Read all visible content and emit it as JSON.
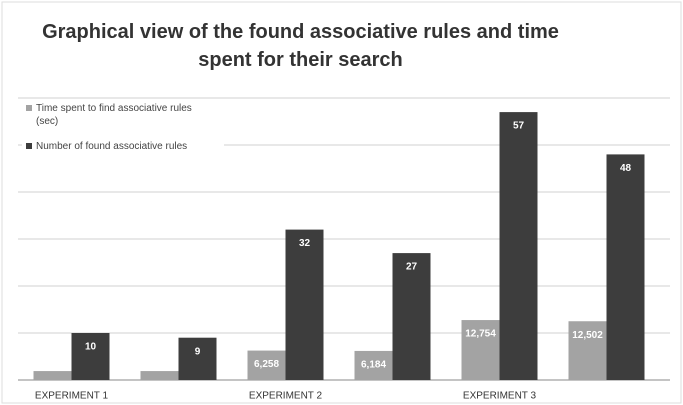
{
  "chart_data": {
    "type": "bar",
    "title": "Graphical view of the found associative rules and time spent for their search",
    "categories": [
      "EXPERIMENT 1",
      null,
      "EXPERIMENT 2",
      null,
      "EXPERIMENT 3",
      null
    ],
    "series": [
      {
        "name": "Time spent to find associative rules (sec)",
        "color": "#a3a3a3",
        "values": [
          1.9,
          1.9,
          6.258,
          6.184,
          12.754,
          12.502
        ],
        "value_labels": [
          null,
          null,
          "6,258",
          "6,184",
          "12,754",
          "12,502"
        ]
      },
      {
        "name": "Number of found associative rules",
        "color": "#3d3d3d",
        "values": [
          10,
          9,
          32,
          27,
          57,
          48
        ]
      }
    ],
    "ylim": [
      0,
      60
    ],
    "yticks": [
      0,
      10,
      20,
      30,
      40,
      50,
      60
    ],
    "grid": true,
    "legend": "top-left"
  }
}
